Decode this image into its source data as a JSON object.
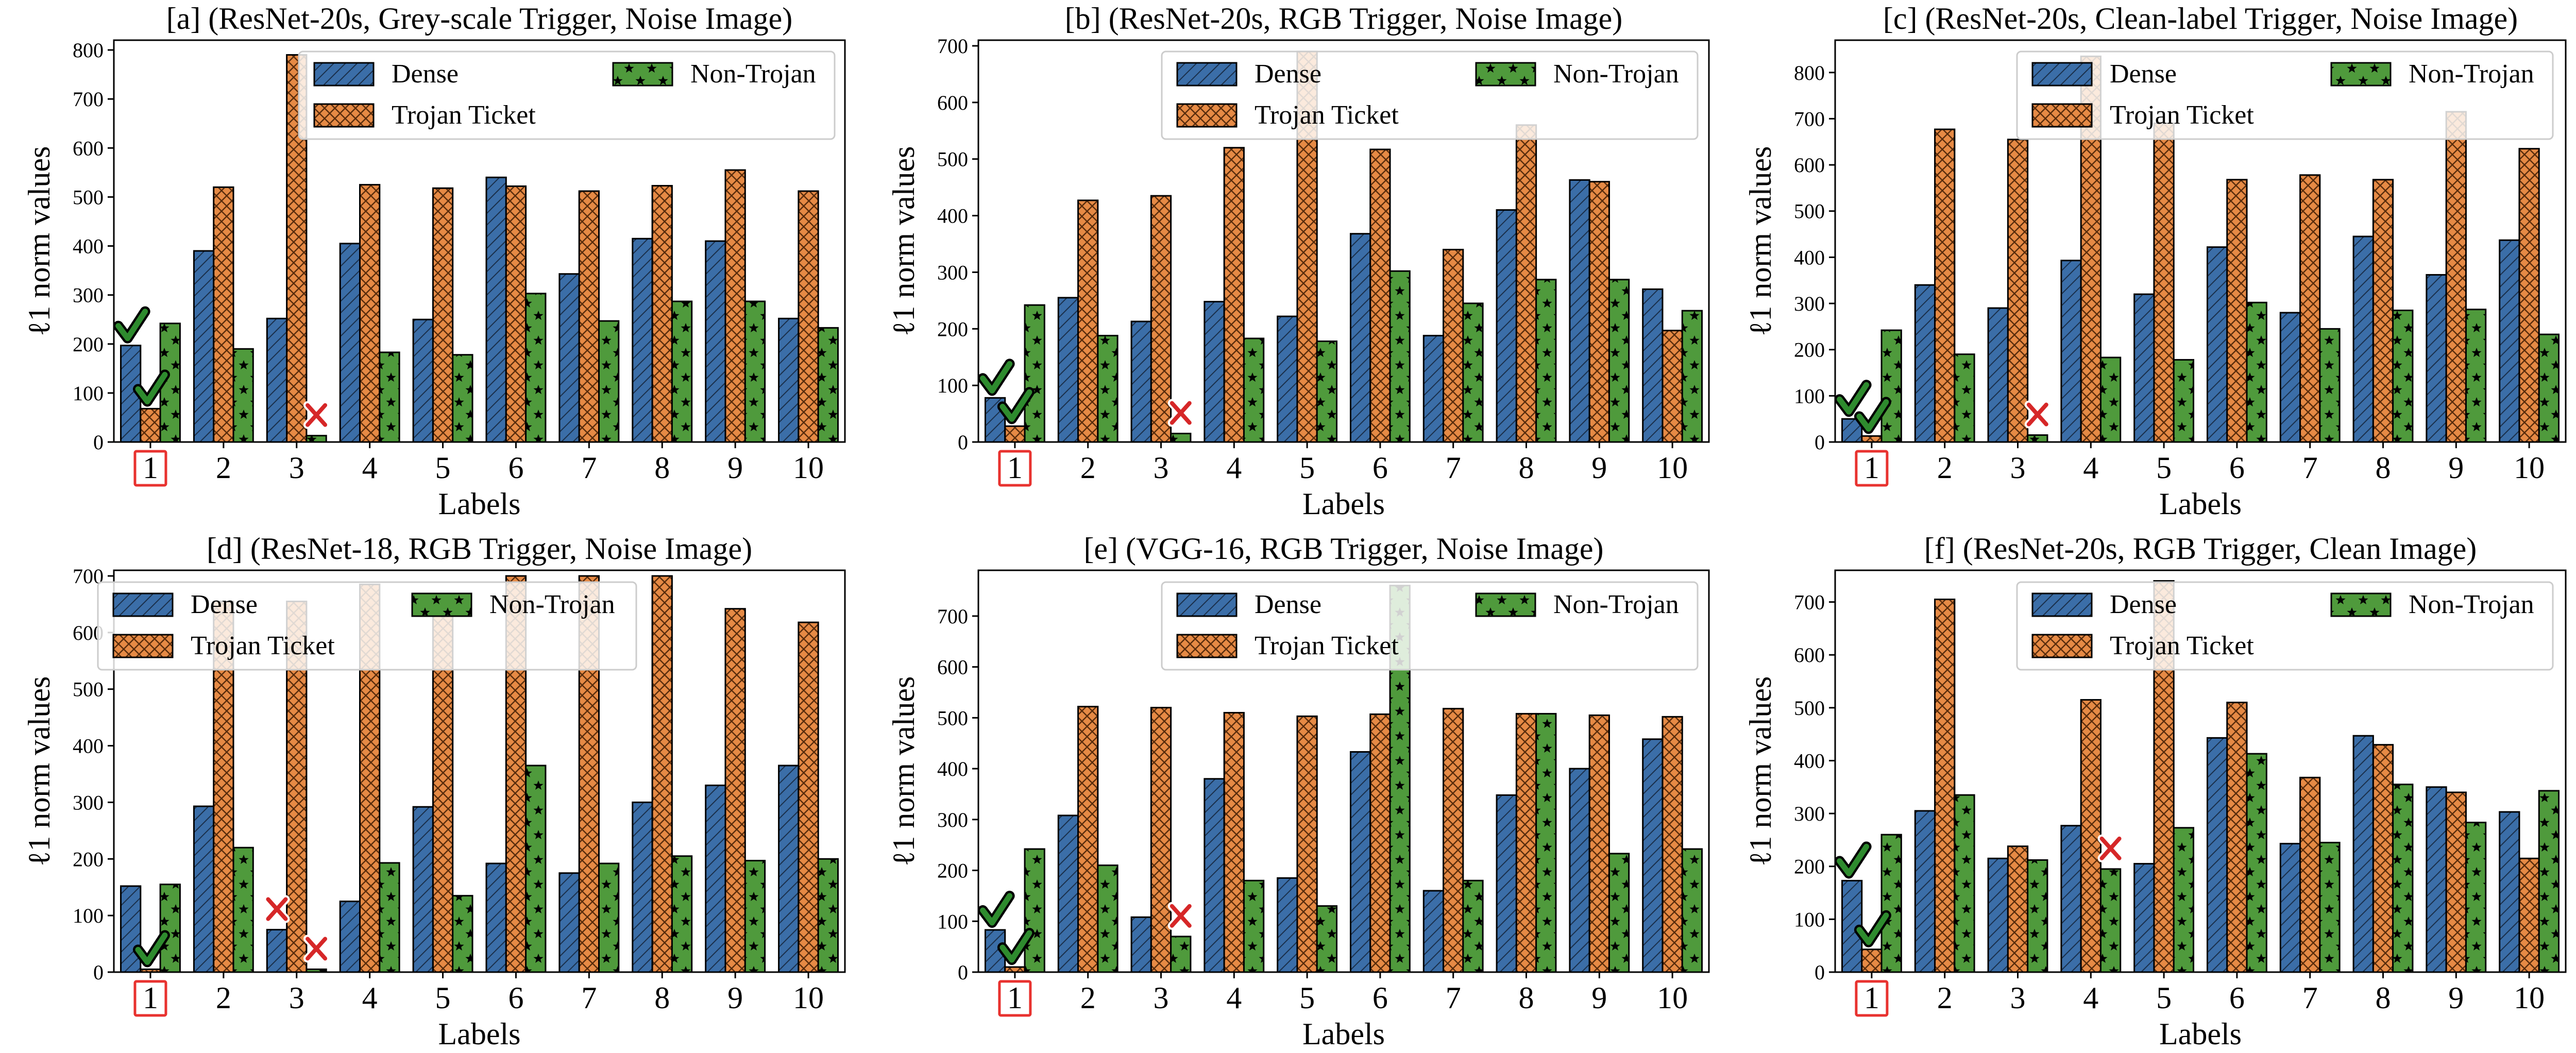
{
  "figure": {
    "colors": {
      "dense": "#3b6ea8",
      "trojan": "#e68a45",
      "nontrojan": "#4f9a3c",
      "check": "#2e8b2e",
      "cross": "#d62728",
      "highlight": "#e8322f"
    }
  },
  "chart_data": [
    {
      "type": "bar",
      "title": "[a] (ResNet-20s, Grey-scale Trigger, Noise Image)",
      "xlabel": "Labels",
      "ylabel": "ℓ1 norm values",
      "categories": [
        "1",
        "2",
        "3",
        "4",
        "5",
        "6",
        "7",
        "8",
        "9",
        "10"
      ],
      "highlighted_category": "1",
      "ylim": [
        0,
        820
      ],
      "yticks": [
        0,
        100,
        200,
        300,
        400,
        500,
        600,
        700,
        800
      ],
      "legend": [
        "Dense",
        "Trojan Ticket",
        "Non-Trojan"
      ],
      "series": [
        {
          "name": "Dense",
          "values": [
            197,
            390,
            252,
            405,
            250,
            540,
            343,
            415,
            410,
            252
          ]
        },
        {
          "name": "Trojan Ticket",
          "values": [
            68,
            520,
            790,
            525,
            518,
            522,
            512,
            523,
            555,
            512
          ]
        },
        {
          "name": "Non-Trojan",
          "values": [
            242,
            190,
            13,
            183,
            178,
            303,
            247,
            287,
            287,
            233
          ]
        }
      ],
      "annotations": [
        {
          "symbol": "check",
          "category": "1",
          "series": "Dense",
          "y": 197
        },
        {
          "symbol": "check",
          "category": "1",
          "series": "Trojan Ticket",
          "y": 68
        },
        {
          "symbol": "cross",
          "category": "3",
          "series": "Non-Trojan",
          "y": 13
        }
      ]
    },
    {
      "type": "bar",
      "title": "[b] (ResNet-20s, RGB Trigger, Noise Image)",
      "xlabel": "Labels",
      "ylabel": "ℓ1 norm values",
      "categories": [
        "1",
        "2",
        "3",
        "4",
        "5",
        "6",
        "7",
        "8",
        "9",
        "10"
      ],
      "highlighted_category": "1",
      "ylim": [
        0,
        710
      ],
      "yticks": [
        0,
        100,
        200,
        300,
        400,
        500,
        600,
        700
      ],
      "legend": [
        "Dense",
        "Trojan Ticket",
        "Non-Trojan"
      ],
      "series": [
        {
          "name": "Dense",
          "values": [
            78,
            255,
            213,
            248,
            222,
            368,
            188,
            410,
            463,
            270
          ]
        },
        {
          "name": "Trojan Ticket",
          "values": [
            28,
            427,
            435,
            520,
            690,
            517,
            340,
            560,
            460,
            197
          ]
        },
        {
          "name": "Non-Trojan",
          "values": [
            242,
            188,
            15,
            183,
            178,
            302,
            245,
            287,
            287,
            232
          ]
        }
      ],
      "annotations": [
        {
          "symbol": "check",
          "category": "1",
          "series": "Dense",
          "y": 78
        },
        {
          "symbol": "check",
          "category": "1",
          "series": "Trojan Ticket",
          "y": 28
        },
        {
          "symbol": "cross",
          "category": "3",
          "series": "Non-Trojan",
          "y": 15
        }
      ]
    },
    {
      "type": "bar",
      "title": "[c] (ResNet-20s, Clean-label Trigger, Noise Image)",
      "xlabel": "Labels",
      "ylabel": "ℓ1 norm values",
      "categories": [
        "1",
        "2",
        "3",
        "4",
        "5",
        "6",
        "7",
        "8",
        "9",
        "10"
      ],
      "highlighted_category": "1",
      "ylim": [
        0,
        870
      ],
      "yticks": [
        0,
        100,
        200,
        300,
        400,
        500,
        600,
        700,
        800
      ],
      "legend": [
        "Dense",
        "Trojan Ticket",
        "Non-Trojan"
      ],
      "series": [
        {
          "name": "Dense",
          "values": [
            50,
            340,
            290,
            393,
            320,
            422,
            280,
            445,
            362,
            437
          ]
        },
        {
          "name": "Trojan Ticket",
          "values": [
            13,
            677,
            655,
            835,
            690,
            568,
            578,
            568,
            715,
            635
          ]
        },
        {
          "name": "Non-Trojan",
          "values": [
            242,
            190,
            15,
            183,
            178,
            302,
            245,
            285,
            287,
            233
          ]
        }
      ],
      "annotations": [
        {
          "symbol": "check",
          "category": "1",
          "series": "Dense",
          "y": 50
        },
        {
          "symbol": "check",
          "category": "1",
          "series": "Trojan Ticket",
          "y": 13
        },
        {
          "symbol": "cross",
          "category": "3",
          "series": "Non-Trojan",
          "y": 15
        }
      ]
    },
    {
      "type": "bar",
      "title": "[d] (ResNet-18, RGB Trigger, Noise Image)",
      "xlabel": "Labels",
      "ylabel": "ℓ1 norm values",
      "categories": [
        "1",
        "2",
        "3",
        "4",
        "5",
        "6",
        "7",
        "8",
        "9",
        "10"
      ],
      "highlighted_category": "1",
      "ylim": [
        0,
        710
      ],
      "yticks": [
        0,
        100,
        200,
        300,
        400,
        500,
        600,
        700
      ],
      "legend": [
        "Dense",
        "Trojan Ticket",
        "Non-Trojan"
      ],
      "series": [
        {
          "name": "Dense",
          "values": [
            152,
            293,
            75,
            125,
            292,
            192,
            175,
            300,
            330,
            365
          ]
        },
        {
          "name": "Trojan Ticket",
          "values": [
            5,
            655,
            655,
            685,
            660,
            700,
            700,
            700,
            642,
            618
          ]
        },
        {
          "name": "Non-Trojan",
          "values": [
            155,
            220,
            5,
            193,
            135,
            365,
            192,
            205,
            197,
            200
          ]
        }
      ],
      "annotations": [
        {
          "symbol": "check",
          "category": "1",
          "series": "Trojan Ticket",
          "y": 5
        },
        {
          "symbol": "cross",
          "category": "3",
          "series": "Dense",
          "y": 75
        },
        {
          "symbol": "cross",
          "category": "3",
          "series": "Non-Trojan",
          "y": 5
        }
      ]
    },
    {
      "type": "bar",
      "title": "[e] (VGG-16, RGB Trigger, Noise Image)",
      "xlabel": "Labels",
      "ylabel": "ℓ1 norm values",
      "categories": [
        "1",
        "2",
        "3",
        "4",
        "5",
        "6",
        "7",
        "8",
        "9",
        "10"
      ],
      "highlighted_category": "1",
      "ylim": [
        0,
        790
      ],
      "yticks": [
        0,
        100,
        200,
        300,
        400,
        500,
        600,
        700
      ],
      "legend": [
        "Dense",
        "Trojan Ticket",
        "Non-Trojan"
      ],
      "series": [
        {
          "name": "Dense",
          "values": [
            83,
            308,
            108,
            380,
            185,
            433,
            160,
            348,
            400,
            458
          ]
        },
        {
          "name": "Trojan Ticket",
          "values": [
            10,
            522,
            520,
            510,
            503,
            507,
            518,
            508,
            505,
            502
          ]
        },
        {
          "name": "Non-Trojan",
          "values": [
            242,
            210,
            70,
            180,
            130,
            760,
            180,
            508,
            233,
            242
          ]
        }
      ],
      "annotations": [
        {
          "symbol": "check",
          "category": "1",
          "series": "Dense",
          "y": 83
        },
        {
          "symbol": "check",
          "category": "1",
          "series": "Trojan Ticket",
          "y": 10
        },
        {
          "symbol": "cross",
          "category": "3",
          "series": "Non-Trojan",
          "y": 70
        }
      ]
    },
    {
      "type": "bar",
      "title": "[f] (ResNet-20s, RGB Trigger, Clean Image)",
      "xlabel": "Labels",
      "ylabel": "ℓ1 norm values",
      "categories": [
        "1",
        "2",
        "3",
        "4",
        "5",
        "6",
        "7",
        "8",
        "9",
        "10"
      ],
      "highlighted_category": "1",
      "ylim": [
        0,
        760
      ],
      "yticks": [
        0,
        100,
        200,
        300,
        400,
        500,
        600,
        700
      ],
      "legend": [
        "Dense",
        "Trojan Ticket",
        "Non-Trojan"
      ],
      "series": [
        {
          "name": "Dense",
          "values": [
            173,
            305,
            215,
            277,
            205,
            443,
            243,
            447,
            350,
            303
          ]
        },
        {
          "name": "Trojan Ticket",
          "values": [
            43,
            705,
            238,
            515,
            740,
            510,
            368,
            430,
            340,
            215
          ]
        },
        {
          "name": "Non-Trojan",
          "values": [
            260,
            335,
            212,
            195,
            273,
            413,
            245,
            355,
            283,
            343
          ]
        }
      ],
      "annotations": [
        {
          "symbol": "check",
          "category": "1",
          "series": "Dense",
          "y": 173
        },
        {
          "symbol": "check",
          "category": "1",
          "series": "Trojan Ticket",
          "y": 43
        },
        {
          "symbol": "cross",
          "category": "4",
          "series": "Non-Trojan",
          "y": 195
        }
      ]
    }
  ]
}
